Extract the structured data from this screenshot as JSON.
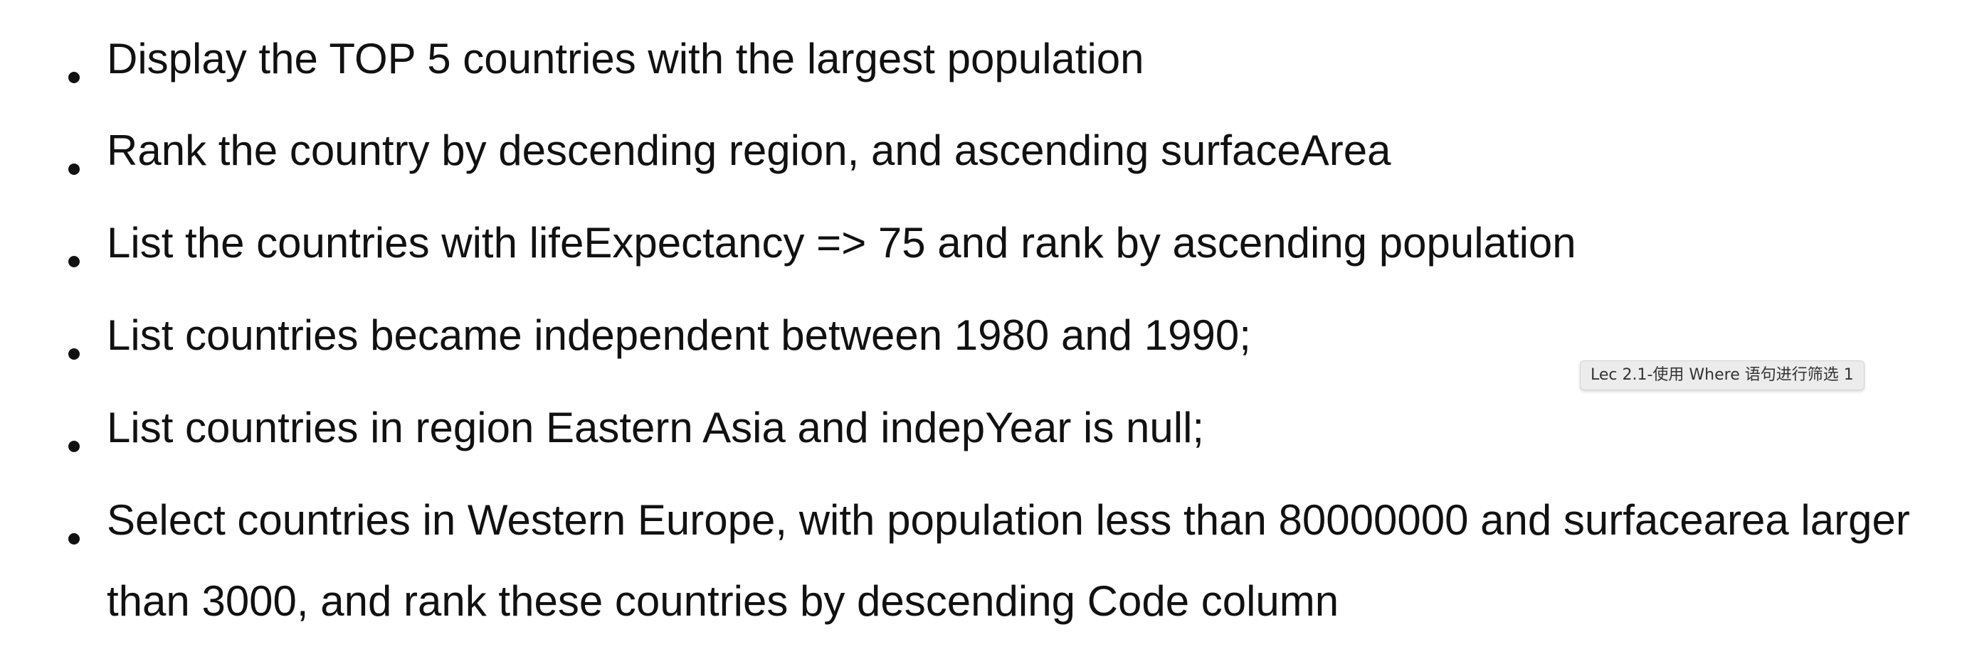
{
  "bullets": [
    {
      "text": "Display the TOP 5 countries with the largest population"
    },
    {
      "text": "Rank the country by descending region, and ascending surfaceArea"
    },
    {
      "text": "List the countries with lifeExpectancy => 75 and rank by ascending population"
    },
    {
      "text": "List countries became independent between 1980 and 1990;"
    },
    {
      "text": "List countries in region Eastern Asia and indepYear is null;"
    },
    {
      "text": "Select countries in Western Europe, with population less than 80000000 and surfacearea larger than 3000, and rank these countries by descending Code column"
    }
  ],
  "tooltip": {
    "text": "Lec 2.1-使用 Where 语句进行筛选 1"
  }
}
